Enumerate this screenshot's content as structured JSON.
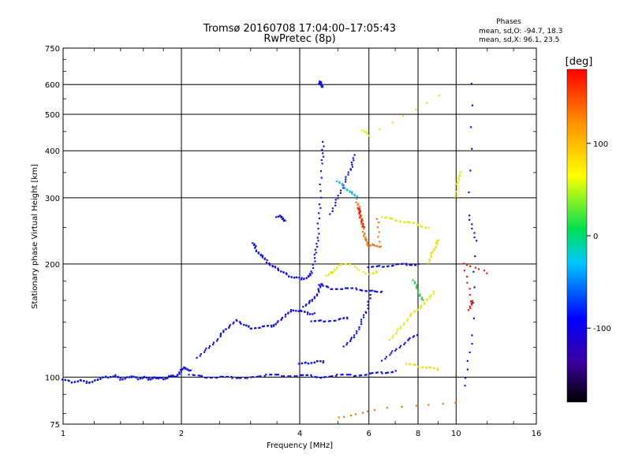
{
  "chart_data": {
    "type": "scatter",
    "title": "Tromsø 20160708 17:04:00–17:05:43",
    "subtitle": "RwPretec (8p)",
    "xlabel": "Frequency [MHz]",
    "ylabel": "Stationary phase Virtual Height [km]",
    "x_scale": "log",
    "y_scale": "log",
    "xlim": [
      1,
      16
    ],
    "ylim": [
      75,
      750
    ],
    "x_ticks": [
      1,
      2,
      4,
      6,
      8,
      10,
      16
    ],
    "x_tick_labels": [
      "1",
      "2",
      "4",
      "6",
      "8",
      "10",
      "16"
    ],
    "y_ticks": [
      75,
      100,
      200,
      300,
      400,
      500,
      600,
      750
    ],
    "y_tick_labels": [
      "75",
      "100",
      "200",
      "300",
      "400",
      "500",
      "600",
      "750"
    ],
    "grid": true,
    "phase_stats": {
      "heading": "Phases",
      "line_o": "mean, sd,O:  -94.7, 18.3",
      "line_x": "mean, sd,X:  96.1, 23.5"
    },
    "colorbar": {
      "label": "[deg]",
      "range": [
        -180,
        180
      ],
      "ticks": [
        100,
        0,
        -100
      ],
      "tick_labels": [
        "100",
        "0",
        "-100"
      ]
    },
    "trace_colors": {
      "blue": "#1414dc",
      "cyan": "#14b4e6",
      "green": "#32c850",
      "yellow": "#e6e614",
      "orange": "#f07814",
      "red": "#e61e14"
    },
    "traces": [
      {
        "color": "blue",
        "points": [
          [
            1.0,
            98
          ],
          [
            1.05,
            97
          ],
          [
            1.1,
            98
          ],
          [
            1.15,
            97
          ],
          [
            1.2,
            98
          ],
          [
            1.25,
            99
          ],
          [
            1.3,
            100
          ],
          [
            1.35,
            101
          ],
          [
            1.4,
            99
          ],
          [
            1.45,
            100
          ],
          [
            1.5,
            100
          ],
          [
            1.55,
            99
          ],
          [
            1.6,
            100
          ],
          [
            1.65,
            99
          ],
          [
            1.7,
            100
          ],
          [
            1.75,
            99
          ],
          [
            1.8,
            99
          ],
          [
            1.85,
            100
          ],
          [
            1.9,
            101
          ],
          [
            1.95,
            101
          ],
          [
            2.0,
            104
          ],
          [
            2.05,
            106
          ],
          [
            2.1,
            104
          ]
        ]
      },
      {
        "color": "blue",
        "points": [
          [
            2.1,
            101
          ],
          [
            2.3,
            100
          ],
          [
            2.5,
            100
          ],
          [
            2.7,
            100
          ],
          [
            3.0,
            100
          ],
          [
            3.3,
            101
          ],
          [
            3.6,
            101
          ],
          [
            4.0,
            101
          ],
          [
            4.3,
            101
          ],
          [
            4.6,
            100
          ],
          [
            5.0,
            101
          ],
          [
            5.5,
            101
          ],
          [
            6.0,
            102
          ],
          [
            6.5,
            103
          ],
          [
            7.0,
            104
          ]
        ]
      },
      {
        "color": "blue",
        "points": [
          [
            4.0,
            108
          ],
          [
            4.2,
            109
          ],
          [
            4.4,
            110
          ],
          [
            4.6,
            110
          ]
        ]
      },
      {
        "color": "blue",
        "points": [
          [
            2.2,
            112
          ],
          [
            2.35,
            120
          ],
          [
            2.5,
            128
          ],
          [
            2.6,
            135
          ],
          [
            2.75,
            142
          ],
          [
            2.9,
            137
          ],
          [
            3.0,
            135
          ],
          [
            3.2,
            136
          ],
          [
            3.4,
            137
          ],
          [
            3.5,
            140
          ],
          [
            3.7,
            146
          ],
          [
            3.85,
            151
          ],
          [
            4.0,
            150
          ],
          [
            4.2,
            148
          ],
          [
            4.35,
            148
          ]
        ]
      },
      {
        "color": "blue",
        "points": [
          [
            3.05,
            226
          ],
          [
            3.1,
            218
          ],
          [
            3.2,
            210
          ],
          [
            3.3,
            203
          ],
          [
            3.45,
            197
          ],
          [
            3.6,
            190
          ],
          [
            3.75,
            186
          ],
          [
            3.9,
            184
          ],
          [
            4.05,
            183
          ],
          [
            4.2,
            185
          ],
          [
            4.3,
            190
          ],
          [
            4.4,
            215
          ],
          [
            4.45,
            240
          ],
          [
            4.5,
            290
          ],
          [
            4.55,
            370
          ],
          [
            4.6,
            420
          ]
        ]
      },
      {
        "color": "blue",
        "points": [
          [
            4.5,
            600
          ],
          [
            4.52,
            610
          ],
          [
            4.55,
            590
          ]
        ]
      },
      {
        "color": "blue",
        "points": [
          [
            3.5,
            265
          ],
          [
            3.6,
            268
          ],
          [
            3.65,
            260
          ]
        ]
      },
      {
        "color": "blue",
        "points": [
          [
            4.5,
            175
          ],
          [
            4.8,
            172
          ],
          [
            5.2,
            172
          ],
          [
            5.6,
            172
          ],
          [
            6.0,
            170
          ],
          [
            6.5,
            168
          ]
        ]
      },
      {
        "color": "blue",
        "points": [
          [
            4.1,
            153
          ],
          [
            4.3,
            160
          ],
          [
            4.45,
            168
          ],
          [
            4.55,
            178
          ]
        ]
      },
      {
        "color": "blue",
        "points": [
          [
            5.2,
            120
          ],
          [
            5.5,
            128
          ],
          [
            5.7,
            138
          ],
          [
            5.9,
            150
          ],
          [
            6.1,
            170
          ]
        ]
      },
      {
        "color": "blue",
        "points": [
          [
            6.0,
            195
          ],
          [
            6.5,
            197
          ],
          [
            7.0,
            199
          ],
          [
            7.5,
            200
          ],
          [
            8.0,
            200
          ]
        ]
      },
      {
        "color": "blue",
        "points": [
          [
            4.3,
            140
          ],
          [
            4.6,
            141
          ],
          [
            5.0,
            142
          ],
          [
            5.3,
            144
          ]
        ]
      },
      {
        "color": "blue",
        "points": [
          [
            4.8,
            270
          ],
          [
            5.0,
            300
          ],
          [
            5.2,
            330
          ],
          [
            5.4,
            360
          ],
          [
            5.5,
            390
          ]
        ]
      },
      {
        "color": "blue",
        "points": [
          [
            6.5,
            110
          ],
          [
            7.0,
            118
          ],
          [
            7.5,
            125
          ],
          [
            8.0,
            130
          ]
        ]
      },
      {
        "color": "cyan",
        "points": [
          [
            5.0,
            330
          ],
          [
            5.2,
            320
          ],
          [
            5.4,
            310
          ],
          [
            5.6,
            300
          ]
        ]
      },
      {
        "color": "orange",
        "points": [
          [
            5.6,
            290
          ],
          [
            5.7,
            275
          ],
          [
            5.75,
            260
          ],
          [
            5.8,
            245
          ],
          [
            5.9,
            232
          ],
          [
            6.0,
            222
          ],
          [
            6.2,
            225
          ],
          [
            6.4,
            222
          ],
          [
            6.3,
            265
          ]
        ]
      },
      {
        "color": "red",
        "points": [
          [
            5.65,
            280
          ],
          [
            5.7,
            270
          ],
          [
            5.8,
            250
          ]
        ]
      },
      {
        "color": "yellow",
        "points": [
          [
            4.7,
            185
          ],
          [
            4.85,
            190
          ],
          [
            5.0,
            198
          ],
          [
            5.4,
            200
          ],
          [
            6.0,
            188
          ],
          [
            6.3,
            190
          ]
        ]
      },
      {
        "color": "yellow",
        "points": [
          [
            6.5,
            265
          ],
          [
            7.0,
            262
          ],
          [
            7.5,
            258
          ],
          [
            8.0,
            255
          ],
          [
            8.5,
            250
          ]
        ]
      },
      {
        "color": "yellow",
        "points": [
          [
            6.8,
            125
          ],
          [
            7.2,
            135
          ],
          [
            7.6,
            145
          ],
          [
            8.0,
            152
          ],
          [
            8.4,
            160
          ],
          [
            8.8,
            168
          ]
        ]
      },
      {
        "color": "yellow",
        "points": [
          [
            7.5,
            108
          ],
          [
            8.0,
            107
          ],
          [
            8.5,
            106
          ],
          [
            9.0,
            105
          ]
        ]
      },
      {
        "color": "yellow",
        "points": [
          [
            8.5,
            200
          ],
          [
            8.7,
            215
          ],
          [
            8.9,
            225
          ],
          [
            9.0,
            232
          ]
        ]
      },
      {
        "color": "yellow",
        "points": [
          [
            5.8,
            450
          ],
          [
            6.0,
            440
          ],
          [
            9.0,
            560
          ]
        ]
      },
      {
        "color": "green",
        "points": [
          [
            7.8,
            180
          ],
          [
            8.0,
            170
          ],
          [
            8.2,
            160
          ]
        ]
      },
      {
        "color": "yellow",
        "points": [
          [
            10.0,
            300
          ],
          [
            10.1,
            330
          ],
          [
            10.2,
            350
          ]
        ]
      },
      {
        "color": "blue",
        "points": [
          [
            11.0,
            600
          ],
          [
            10.8,
            270
          ],
          [
            11.2,
            230
          ],
          [
            11.0,
            130
          ],
          [
            10.5,
            95
          ]
        ]
      },
      {
        "color": "red",
        "points": [
          [
            10.8,
            150
          ],
          [
            11.0,
            160
          ],
          [
            10.4,
            200
          ],
          [
            12.0,
            190
          ]
        ]
      },
      {
        "color": "orange",
        "points": [
          [
            10.0,
            85
          ],
          [
            6.2,
            82
          ],
          [
            5.0,
            78
          ]
        ]
      }
    ]
  }
}
